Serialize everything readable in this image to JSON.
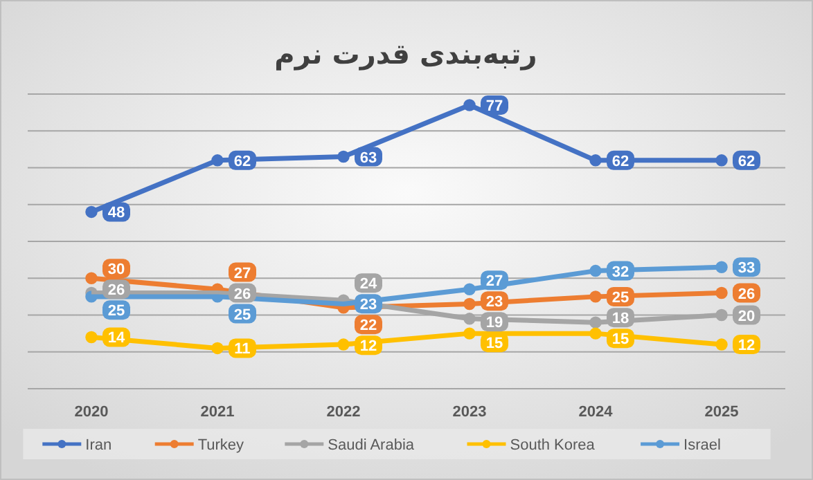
{
  "chart_data": {
    "type": "line",
    "title": "رتبه‌بندی قدرت نرم",
    "categories": [
      "2020",
      "2021",
      "2022",
      "2023",
      "2024",
      "2025"
    ],
    "series": [
      {
        "name": "Iran",
        "color": "#4472c4",
        "values": [
          48,
          62,
          63,
          77,
          62,
          62
        ]
      },
      {
        "name": "Turkey",
        "color": "#ed7d31",
        "values": [
          30,
          27,
          22,
          23,
          25,
          26
        ]
      },
      {
        "name": "Saudi Arabia",
        "color": "#a5a5a5",
        "values": [
          26,
          26,
          24,
          19,
          18,
          20
        ]
      },
      {
        "name": "South Korea",
        "color": "#ffc000",
        "values": [
          14,
          11,
          12,
          15,
          15,
          12
        ]
      },
      {
        "name": "Israel",
        "color": "#5b9bd5",
        "values": [
          25,
          25,
          23,
          27,
          32,
          33
        ]
      }
    ],
    "ylim": [
      0,
      80
    ],
    "yticks": [
      {
        "value": 0,
        "label": null
      },
      {
        "value": 10,
        "label": null
      },
      {
        "value": 20,
        "label": null
      },
      {
        "value": 30,
        "label": null
      },
      {
        "value": 40,
        "label": null
      },
      {
        "value": 50,
        "label": null
      },
      {
        "value": 60,
        "label": null
      },
      {
        "value": 70,
        "label": null
      },
      {
        "value": 80,
        "label": null
      }
    ],
    "grid": "y",
    "tick_labels": "x",
    "legend": "bottom",
    "marker": "circle",
    "line_style": "solid",
    "data_labels": true
  }
}
